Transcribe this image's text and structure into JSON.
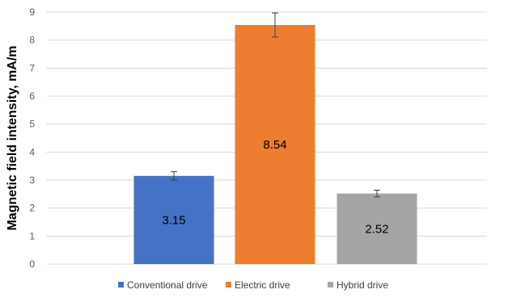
{
  "chart_data": {
    "type": "bar",
    "title": "",
    "xlabel": "",
    "ylabel": "Magnetic field intensity, mA/m",
    "ylim": [
      0,
      9
    ],
    "yticks": [
      0,
      1,
      2,
      3,
      4,
      5,
      6,
      7,
      8,
      9
    ],
    "grid": true,
    "legend_position": "bottom",
    "series": [
      {
        "name": "Conventional drive",
        "value": 3.15,
        "error": 0.15,
        "label": "3.15",
        "color": "#4472c4"
      },
      {
        "name": "Electric drive",
        "value": 8.54,
        "error": 0.43,
        "label": "8.54",
        "color": "#ed7d31"
      },
      {
        "name": "Hybrid drive",
        "value": 2.52,
        "error": 0.12,
        "label": "2.52",
        "color": "#a5a5a5"
      }
    ]
  }
}
